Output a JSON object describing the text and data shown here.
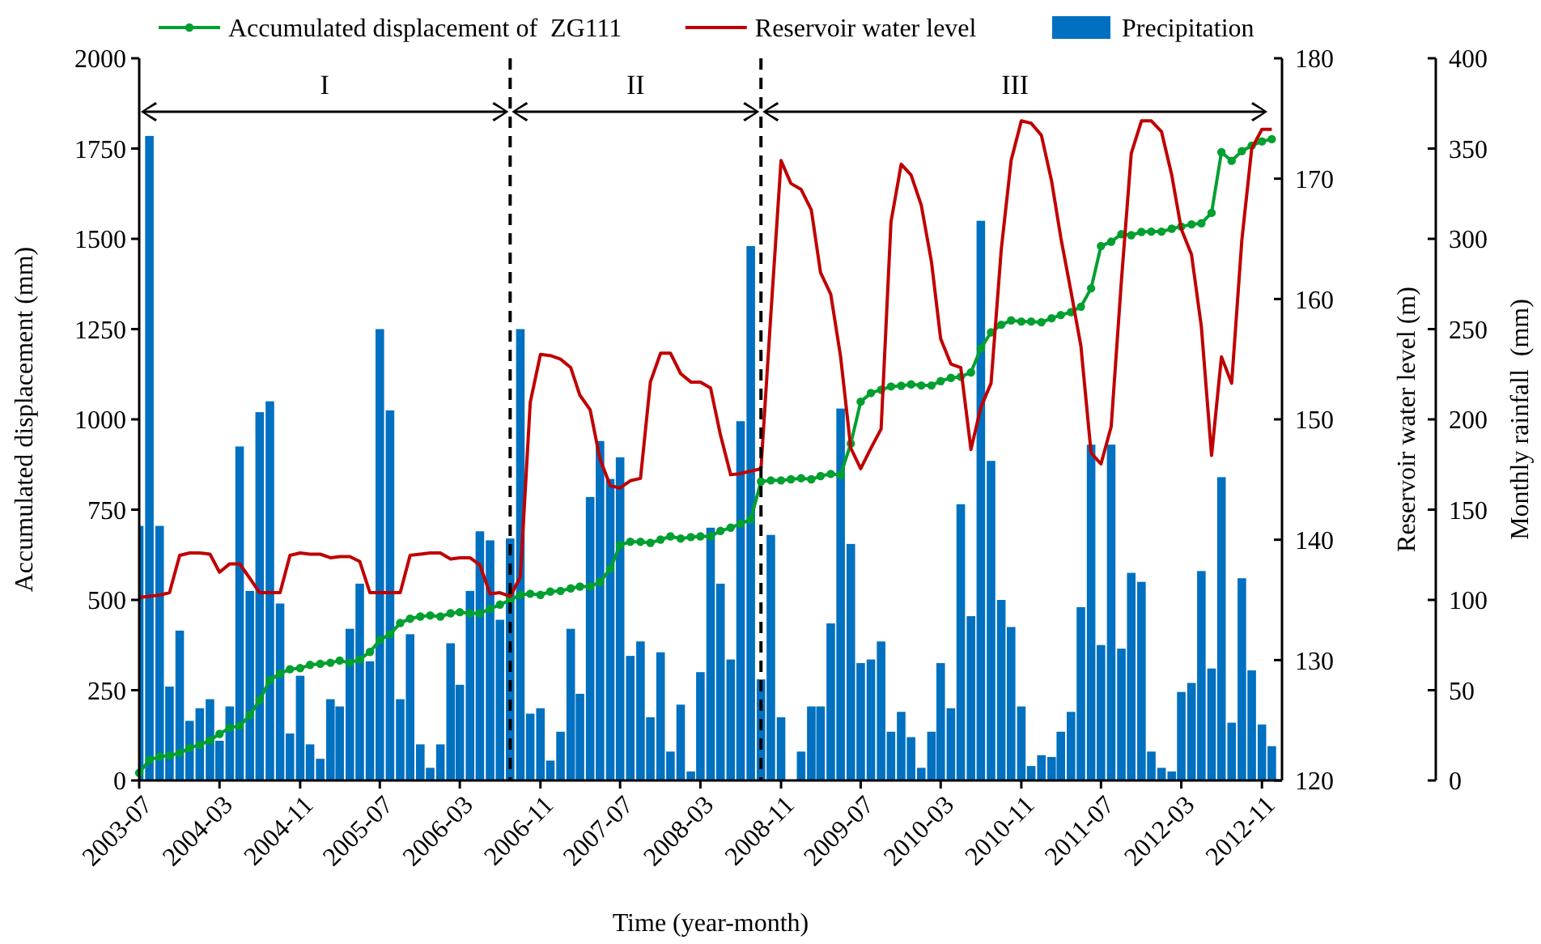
{
  "chart_data": {
    "type": "line",
    "xlabel": "Time (year-month)",
    "ylabel": "Accumulated displacement (mm)",
    "y2label": "Reservoir water level (m)",
    "y3label": "Monthly rainfall  (mm)",
    "x": [
      "2003-07",
      "2003-08",
      "2003-09",
      "2003-10",
      "2003-11",
      "2003-12",
      "2004-01",
      "2004-02",
      "2004-03",
      "2004-04",
      "2004-05",
      "2004-06",
      "2004-07",
      "2004-08",
      "2004-09",
      "2004-10",
      "2004-11",
      "2004-12",
      "2005-01",
      "2005-02",
      "2005-03",
      "2005-04",
      "2005-05",
      "2005-06",
      "2005-07",
      "2005-08",
      "2005-09",
      "2005-10",
      "2005-11",
      "2005-12",
      "2006-01",
      "2006-02",
      "2006-03",
      "2006-04",
      "2006-05",
      "2006-06",
      "2006-07",
      "2006-08",
      "2006-09",
      "2006-10",
      "2006-11",
      "2006-12",
      "2007-01",
      "2007-02",
      "2007-03",
      "2007-04",
      "2007-05",
      "2007-06",
      "2007-07",
      "2007-08",
      "2007-09",
      "2007-10",
      "2007-11",
      "2007-12",
      "2008-01",
      "2008-02",
      "2008-03",
      "2008-04",
      "2008-05",
      "2008-06",
      "2008-07",
      "2008-08",
      "2008-09",
      "2008-10",
      "2008-11",
      "2008-12",
      "2009-01",
      "2009-02",
      "2009-03",
      "2009-04",
      "2009-05",
      "2009-06",
      "2009-07",
      "2009-08",
      "2009-09",
      "2009-10",
      "2009-11",
      "2009-12",
      "2010-01",
      "2010-02",
      "2010-03",
      "2010-04",
      "2010-05",
      "2010-06",
      "2010-07",
      "2010-08",
      "2010-09",
      "2010-10",
      "2010-11",
      "2010-12",
      "2011-01",
      "2011-02",
      "2011-03",
      "2011-04",
      "2011-05",
      "2011-06",
      "2011-07",
      "2011-08",
      "2011-09",
      "2011-10",
      "2011-11",
      "2011-12",
      "2012-01",
      "2012-02",
      "2012-03",
      "2012-04",
      "2012-05",
      "2012-06",
      "2012-07",
      "2012-08",
      "2012-09",
      "2012-10",
      "2012-11",
      "2012-12"
    ],
    "xlim": [
      "2003-07",
      "2013-01"
    ],
    "xticks": [
      "2003-07",
      "2004-03",
      "2004-11",
      "2005-07",
      "2006-03",
      "2006-11",
      "2007-07",
      "2008-03",
      "2008-11",
      "2009-07",
      "2010-03",
      "2010-11",
      "2011-07",
      "2012-03",
      "2012-11"
    ],
    "ylim": [
      0,
      2000
    ],
    "yticks": [
      0,
      250,
      500,
      750,
      1000,
      1250,
      1500,
      1750,
      2000
    ],
    "y2lim": [
      120,
      180
    ],
    "y2ticks": [
      120,
      130,
      140,
      150,
      160,
      170,
      180
    ],
    "y3lim": [
      0,
      400
    ],
    "y3ticks": [
      0,
      50,
      100,
      150,
      200,
      250,
      300,
      350,
      400
    ],
    "legend": "top",
    "series": [
      {
        "name": "Accumulated displacement of  ZG111",
        "color": "#00a030",
        "marker": "circle",
        "values": [
          21,
          57,
          66,
          69,
          76,
          90,
          99,
          111,
          129,
          146,
          151,
          181,
          223,
          278,
          296,
          308,
          311,
          320,
          323,
          326,
          332,
          326,
          335,
          356,
          389,
          405,
          436,
          448,
          454,
          457,
          454,
          463,
          466,
          463,
          463,
          475,
          487,
          500,
          514,
          517,
          514,
          523,
          525,
          532,
          537,
          537,
          550,
          586,
          652,
          661,
          661,
          658,
          667,
          676,
          670,
          674,
          676,
          676,
          691,
          700,
          711,
          723,
          828,
          831,
          831,
          834,
          837,
          834,
          843,
          849,
          846,
          933,
          1049,
          1073,
          1082,
          1091,
          1093,
          1097,
          1094,
          1094,
          1106,
          1115,
          1118,
          1130,
          1197,
          1241,
          1262,
          1274,
          1271,
          1271,
          1269,
          1280,
          1289,
          1297,
          1312,
          1363,
          1480,
          1492,
          1513,
          1510,
          1519,
          1520,
          1520,
          1528,
          1534,
          1540,
          1543,
          1572,
          1740,
          1716,
          1743,
          1758,
          1770,
          1776
        ]
      },
      {
        "name": "Reservoir water level",
        "axis": "y2",
        "color": "#c00000",
        "marker": "none",
        "values": [
          135.2,
          135.3,
          135.4,
          135.6,
          138.7,
          138.9,
          138.9,
          138.8,
          137.3,
          138.0,
          138.0,
          136.8,
          135.6,
          135.6,
          135.6,
          138.7,
          138.9,
          138.8,
          138.8,
          138.5,
          138.6,
          138.6,
          138.2,
          135.6,
          135.6,
          135.6,
          135.6,
          138.7,
          138.8,
          138.9,
          138.9,
          138.4,
          138.5,
          138.5,
          137.9,
          135.5,
          135.6,
          135.3,
          136.9,
          151.4,
          155.4,
          155.3,
          155.0,
          154.3,
          152.0,
          150.8,
          146.7,
          144.5,
          144.3,
          144.9,
          145.1,
          153.1,
          155.5,
          155.5,
          153.8,
          153.1,
          153.1,
          152.6,
          148.7,
          145.4,
          145.5,
          145.7,
          145.9,
          158.7,
          171.5,
          169.6,
          169.1,
          167.4,
          162.2,
          160.4,
          155.2,
          147.6,
          145.9,
          147.6,
          149.2,
          166.4,
          171.2,
          170.3,
          167.8,
          163.1,
          156.7,
          154.6,
          154.3,
          147.5,
          151.0,
          153.0,
          164.1,
          171.5,
          174.8,
          174.6,
          173.6,
          169.8,
          165.1,
          160.6,
          156.1,
          147.2,
          146.3,
          149.4,
          161.5,
          172.1,
          174.8,
          174.8,
          173.9,
          170.3,
          165.8,
          163.7,
          157.7,
          147.0,
          155.2,
          153.0,
          164.9,
          172.5,
          174.1,
          174.1
        ]
      },
      {
        "name": "Precipitation",
        "type": "bar",
        "axis": "y3",
        "color": "#0070c0",
        "values": [
          141,
          357,
          141,
          52,
          83,
          33,
          40,
          45,
          22,
          41,
          185,
          105,
          204,
          210,
          98,
          26,
          58,
          20,
          12,
          45,
          41,
          84,
          109,
          66,
          250,
          205,
          45,
          81,
          20,
          7,
          20,
          76,
          53,
          105,
          138,
          133,
          89,
          134,
          250,
          37,
          40,
          11,
          27,
          84,
          48,
          157,
          188,
          167,
          179,
          69,
          77,
          35,
          71,
          16,
          42,
          5,
          60,
          140,
          109,
          67,
          199,
          296,
          56,
          136,
          35,
          0,
          16,
          41,
          41,
          87,
          206,
          131,
          65,
          67,
          77,
          27,
          38,
          24,
          7,
          27,
          65,
          40,
          153,
          91,
          310,
          177,
          100,
          85,
          41,
          8,
          14,
          13,
          27,
          38,
          96,
          186,
          75,
          186,
          73,
          115,
          110,
          16,
          7,
          5,
          49,
          54,
          116,
          62,
          168,
          32,
          112,
          61,
          31,
          19
        ]
      }
    ],
    "ref_lines": [
      {
        "axis": "x",
        "value": "2006-08",
        "line_style": "dashed",
        "color": "#000000"
      },
      {
        "axis": "x",
        "value": "2008-09",
        "line_style": "dashed",
        "color": "#000000"
      }
    ],
    "annotations": [
      "I",
      "II",
      "III"
    ]
  }
}
